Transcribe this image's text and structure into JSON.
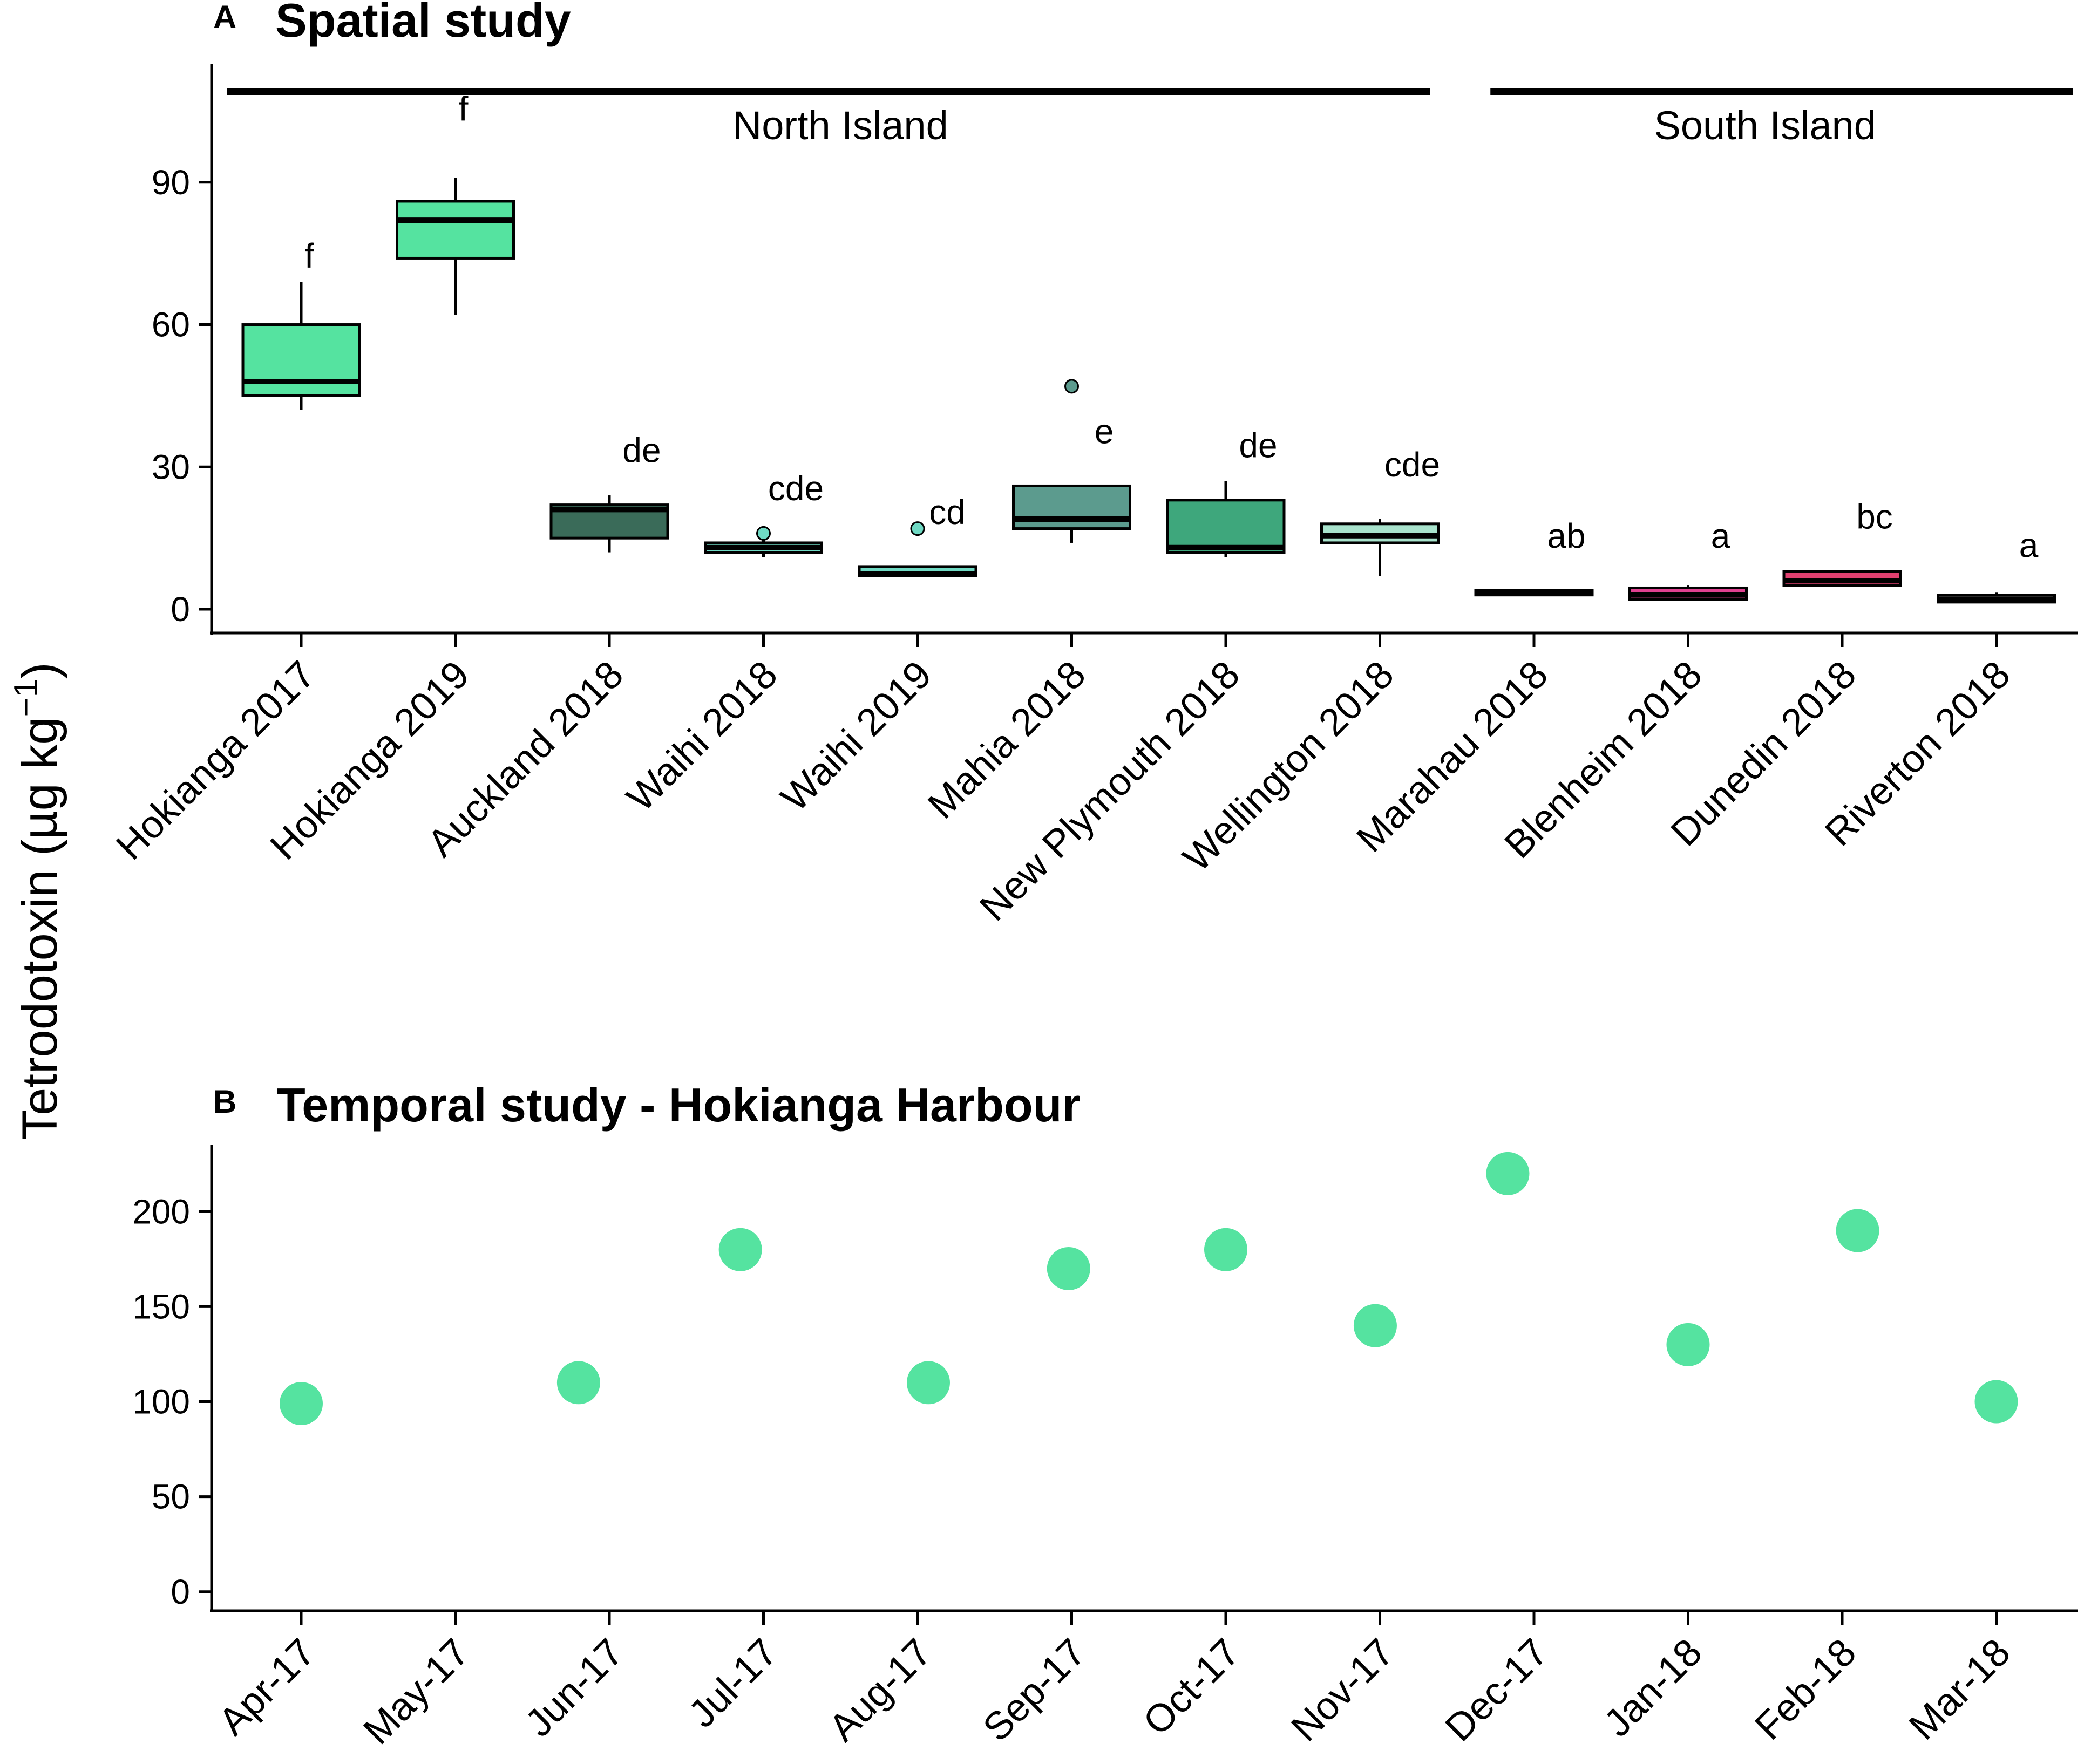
{
  "y_axis_title": "Tetrodotoxin (µg  kg",
  "y_axis_title_sup": "−1",
  "y_axis_title_close": ")",
  "chart_data": [
    {
      "panel": "A",
      "title": "Spatial study",
      "type": "box",
      "ylabel": "Tetrodotoxin (µg kg−1)",
      "ylim": [
        -5,
        115
      ],
      "yticks": [
        0,
        30,
        60,
        90
      ],
      "grid": false,
      "regions": [
        {
          "label": "North Island",
          "from": 0,
          "to": 7
        },
        {
          "label": "South Island",
          "from": 8,
          "to": 11
        }
      ],
      "categories": [
        "Hokianga 2017",
        "Hokianga 2019",
        "Auckland 2018",
        "Waihi 2018",
        "Waihi 2019",
        "Mahia 2018",
        "New Plymouth 2018",
        "Wellington 2018",
        "Marahau 2018",
        "Blenheim 2018",
        "Dunedin 2018",
        "Riverton 2018"
      ],
      "boxes": [
        {
          "min": 42,
          "q1": 45,
          "median": 48,
          "q3": 60,
          "max": 69,
          "outliers": [],
          "fill": "#55e3a0",
          "letter": "f",
          "letter_y": 72
        },
        {
          "min": 62,
          "q1": 74,
          "median": 82,
          "q3": 86,
          "max": 91,
          "outliers": [],
          "fill": "#55e3a0",
          "letter": "f",
          "letter_y": 103
        },
        {
          "min": 12,
          "q1": 15,
          "median": 21,
          "q3": 22,
          "max": 24,
          "outliers": [],
          "fill": "#3a6b59",
          "letter": "de",
          "letter_y": 31
        },
        {
          "min": 11,
          "q1": 12,
          "median": 13,
          "q3": 14,
          "max": 15,
          "outliers": [
            16
          ],
          "fill": "#6fd9c3",
          "letter": "cde",
          "letter_y": 23
        },
        {
          "min": 7,
          "q1": 7,
          "median": 7.5,
          "q3": 9,
          "max": 9,
          "outliers": [
            17
          ],
          "fill": "#6fd9c3",
          "letter": "cd",
          "letter_y": 18
        },
        {
          "min": 14,
          "q1": 17,
          "median": 19,
          "q3": 26,
          "max": 26,
          "outliers": [
            47
          ],
          "fill": "#5c9b8e",
          "letter": "e",
          "letter_y": 35
        },
        {
          "min": 11,
          "q1": 12,
          "median": 13,
          "q3": 23,
          "max": 27,
          "outliers": [],
          "fill": "#3ea77c",
          "letter": "de",
          "letter_y": 32
        },
        {
          "min": 7,
          "q1": 14,
          "median": 15.5,
          "q3": 18,
          "max": 19,
          "outliers": [],
          "fill": "#a8e3cc",
          "letter": "cde",
          "letter_y": 28
        },
        {
          "min": 3,
          "q1": 3,
          "median": 3.5,
          "q3": 4,
          "max": 4,
          "outliers": [],
          "fill": "#333333",
          "letter": "ab",
          "letter_y": 13
        },
        {
          "min": 2,
          "q1": 2,
          "median": 3,
          "q3": 4.5,
          "max": 5,
          "outliers": [],
          "fill": "#e04090",
          "letter": "a",
          "letter_y": 13
        },
        {
          "min": 5,
          "q1": 5,
          "median": 6,
          "q3": 8,
          "max": 8,
          "outliers": [],
          "fill": "#e04070",
          "letter": "bc",
          "letter_y": 17
        },
        {
          "min": 1.5,
          "q1": 1.5,
          "median": 2,
          "q3": 3,
          "max": 3.5,
          "outliers": [],
          "fill": "#333333",
          "letter": "a",
          "letter_y": 11
        }
      ]
    },
    {
      "panel": "B",
      "title": "Temporal study - Hokianga Harbour",
      "type": "scatter",
      "ylim": [
        -10,
        235
      ],
      "yticks": [
        0,
        50,
        100,
        150,
        200
      ],
      "grid": false,
      "categories": [
        "Apr-17",
        "May-17",
        "Jun-17",
        "Jul-17",
        "Aug-17",
        "Sep-17",
        "Oct-17",
        "Nov-17",
        "Dec-17",
        "Jan-18",
        "Feb-18",
        "Mar-18"
      ],
      "points": [
        {
          "x": 0,
          "y": 99
        },
        {
          "x": 1.8,
          "y": 110
        },
        {
          "x": 2.85,
          "y": 180
        },
        {
          "x": 4.07,
          "y": 110
        },
        {
          "x": 4.98,
          "y": 170
        },
        {
          "x": 6.0,
          "y": 180
        },
        {
          "x": 6.97,
          "y": 140
        },
        {
          "x": 7.83,
          "y": 220
        },
        {
          "x": 9.0,
          "y": 130
        },
        {
          "x": 10.1,
          "y": 190
        },
        {
          "x": 11.0,
          "y": 100
        }
      ],
      "point_color": "#55e3a0"
    }
  ]
}
